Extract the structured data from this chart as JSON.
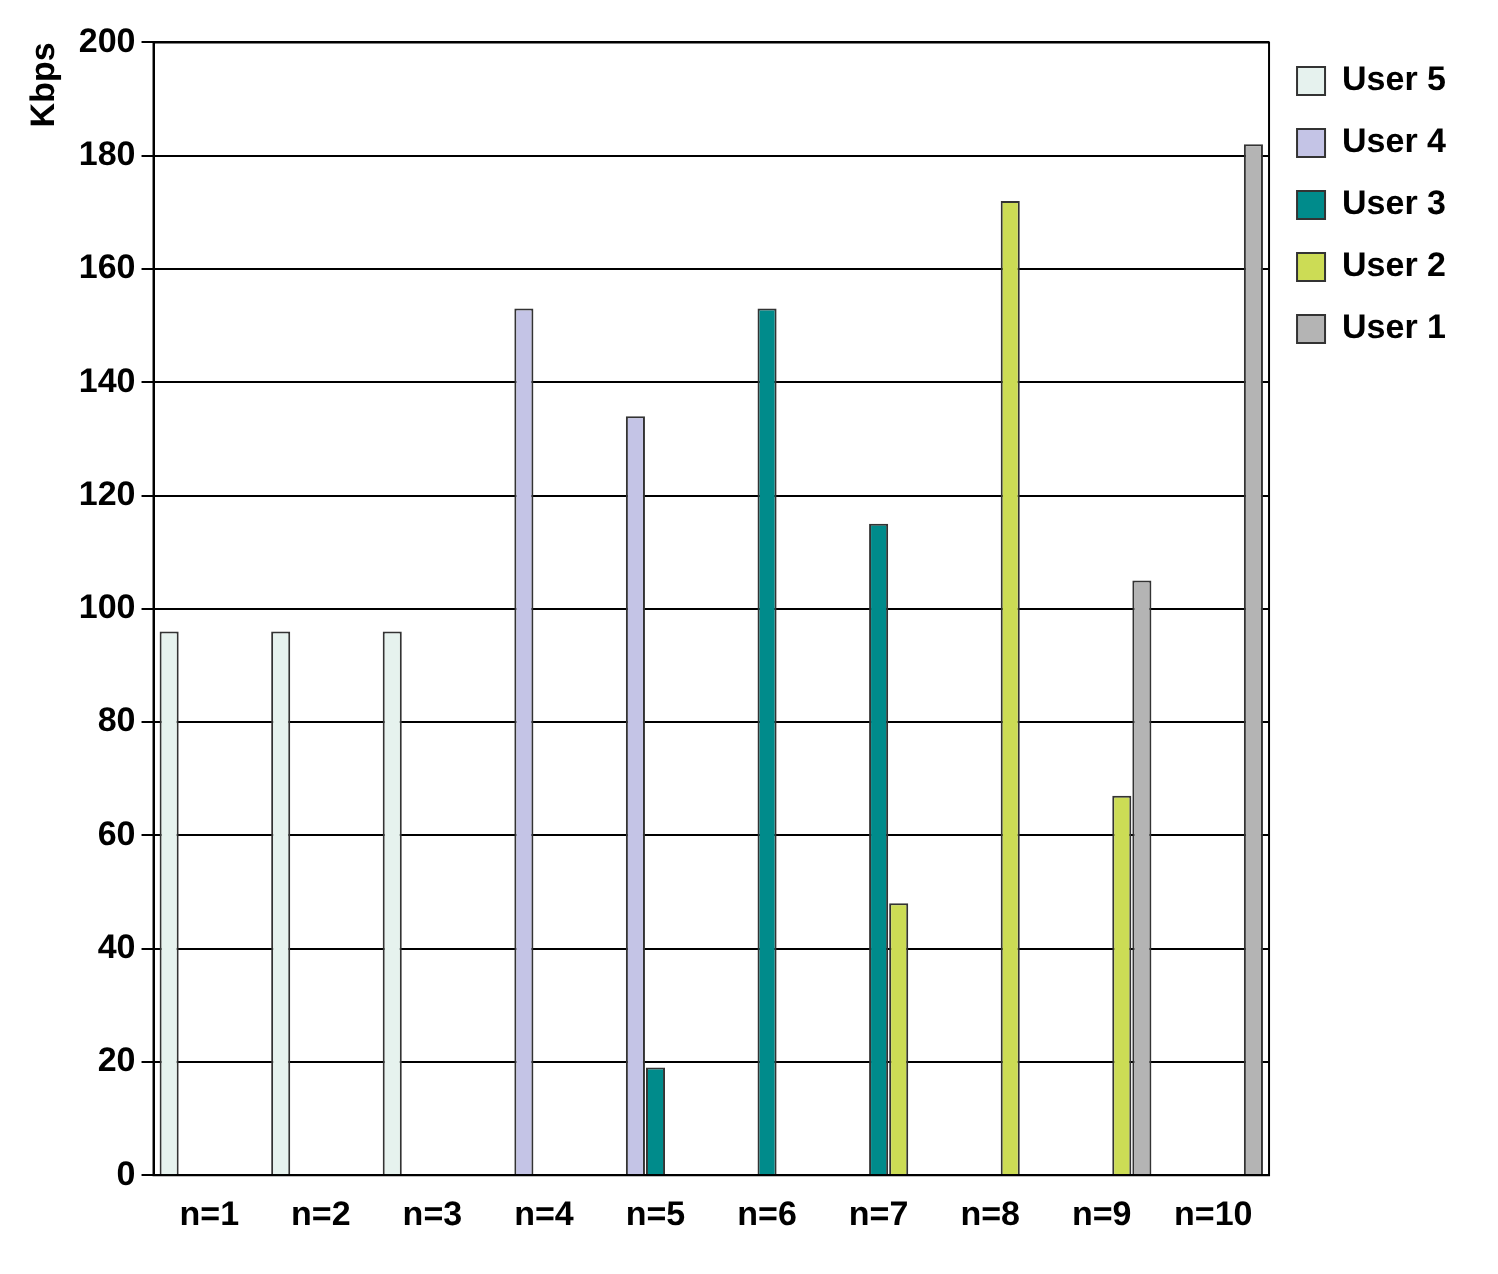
{
  "chart_data": {
    "type": "bar",
    "ylabel": "Kbps",
    "categories": [
      "n=1",
      "n=2",
      "n=3",
      "n=4",
      "n=5",
      "n=6",
      "n=7",
      "n=8",
      "n=9",
      "n=10"
    ],
    "series": [
      {
        "name": "User 5",
        "color": "#e6f2ee",
        "values": [
          96,
          96,
          96,
          0,
          0,
          0,
          0,
          0,
          0,
          0
        ]
      },
      {
        "name": "User 4",
        "color": "#c4c4e6",
        "values": [
          0,
          0,
          0,
          153,
          134,
          0,
          0,
          0,
          0,
          0
        ]
      },
      {
        "name": "User 3",
        "color": "#008b8b",
        "values": [
          0,
          0,
          0,
          0,
          19,
          153,
          115,
          0,
          0,
          0
        ]
      },
      {
        "name": "User 2",
        "color": "#ccdc55",
        "values": [
          0,
          0,
          0,
          0,
          0,
          0,
          48,
          172,
          67,
          0
        ]
      },
      {
        "name": "User 1",
        "color": "#b4b4b4",
        "values": [
          0,
          0,
          0,
          0,
          0,
          0,
          0,
          0,
          105,
          182
        ]
      }
    ],
    "ylim": [
      0,
      200
    ],
    "yticks": [
      0,
      20,
      40,
      60,
      80,
      100,
      120,
      140,
      160,
      180,
      200
    ],
    "grid": "y",
    "legend": "top right"
  }
}
